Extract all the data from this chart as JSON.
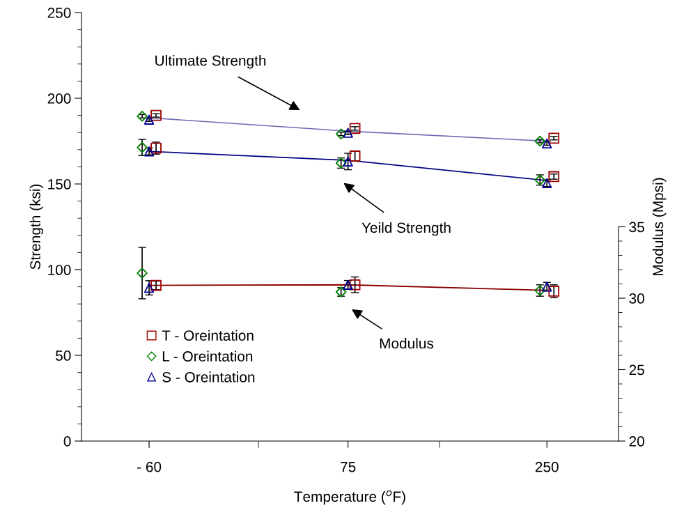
{
  "chart_data": {
    "type": "scatter",
    "xlabel": "Temperature ($^{o}$F)",
    "ylabel": "Strength (ksi)",
    "y2label": "Modulus (Mpsi)",
    "categories": [
      "- 60",
      "75",
      "250"
    ],
    "ylim": [
      0,
      250
    ],
    "yticks": [
      0,
      50,
      100,
      150,
      200,
      250
    ],
    "y2lim": [
      20,
      50
    ],
    "y2ticks": [
      20,
      25,
      30,
      35
    ],
    "grid": false,
    "legend": "bottom left",
    "annotations": [
      "Ultimate Strength",
      "Yeild Strength",
      "Modulus"
    ],
    "series": [
      {
        "type": "line",
        "color": "#6a6ab4",
        "marker": "none",
        "values": [
          188.6,
          180.8,
          175.0
        ]
      },
      {
        "type": "line",
        "color": "#000080",
        "marker": "none",
        "values": [
          169.0,
          163.8,
          152.0
        ]
      },
      {
        "type": "line",
        "color": "#8b0000",
        "marker": "none",
        "axis": "y2",
        "values": [
          30.9,
          30.94,
          30.55
        ]
      },
      {
        "name": "T - Oreintation",
        "color": "#a00000",
        "marker": "square",
        "values": [
          190.0,
          182.4,
          176.7
        ],
        "errors": [
          1,
          1,
          1
        ]
      },
      {
        "name": "L - Oreintation",
        "color": "#008000",
        "marker": "diamond",
        "values": [
          189.5,
          179.2,
          175.0
        ],
        "errors": [
          1,
          1,
          1
        ]
      },
      {
        "name": "S - Oreintation",
        "color": "#000090",
        "marker": "triangle",
        "values": [
          187.5,
          179.8,
          173.6
        ],
        "errors": [
          1,
          1,
          1
        ]
      },
      {
        "color": "#a00000",
        "marker": "square",
        "values": [
          170.9,
          166.3,
          154.3
        ],
        "errors": [
          3.5,
          3,
          1.5
        ]
      },
      {
        "color": "#008000",
        "marker": "diamond",
        "values": [
          171.3,
          162.2,
          152.3
        ],
        "errors": [
          4.7,
          3,
          3
        ]
      },
      {
        "color": "#000090",
        "marker": "triangle",
        "values": [
          169.0,
          163.1,
          150.5
        ],
        "errors": [
          2,
          4.8,
          2
        ]
      },
      {
        "color": "#a00000",
        "marker": "square",
        "axis": "y2",
        "values": [
          30.9,
          30.94,
          30.49
        ],
        "errors": [
          0.3,
          0.55,
          0.45
        ]
      },
      {
        "color": "#008000",
        "marker": "diamond",
        "axis": "y2",
        "values": [
          31.76,
          30.44,
          30.54
        ],
        "errors": [
          1.8,
          0.3,
          0.4
        ]
      },
      {
        "color": "#000090",
        "marker": "triangle",
        "axis": "y2",
        "values": [
          30.73,
          30.94,
          30.81
        ],
        "errors": [
          0.5,
          0.3,
          0.3
        ]
      }
    ]
  }
}
